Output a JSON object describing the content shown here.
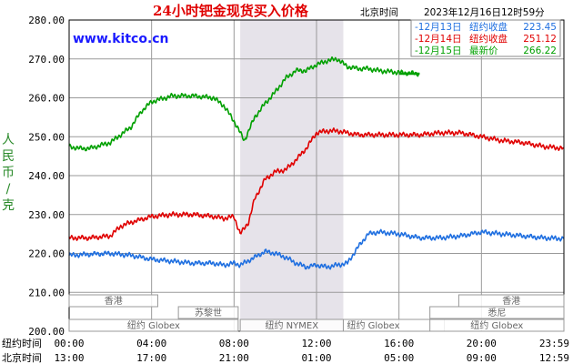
{
  "header": {
    "title": "24小时钯金现货买入价格",
    "timezone": "北京时间",
    "timestamp": "2023年12月16日12时59分",
    "brand": "www.kitco.cn"
  },
  "colors": {
    "bg": "#ffffff",
    "plot_border": "#000000",
    "grid": "#9a9a9a",
    "shade": "#e6e3ea",
    "series_dec13": "#1f6fe0",
    "series_dec14": "#e00000",
    "series_dec15": "#00a000",
    "title": "#e00000",
    "brand": "#1a1aff",
    "ylabel": "#2a8a2a"
  },
  "row_labels": {
    "ny": "纽约时间",
    "bj": "北京时间"
  },
  "markets": [
    {
      "name": "香港"
    },
    {
      "name": "苏黎世"
    },
    {
      "name": "纽约 Globex"
    },
    {
      "name": "纽约 NYMEX"
    },
    {
      "name": "纽约 Globex"
    },
    {
      "name": "香港"
    },
    {
      "name": "悉尼"
    },
    {
      "name": "纽约 Globex"
    }
  ],
  "chart_data": {
    "type": "line",
    "title": "24小时钯金现货买入价格",
    "ylabel": "人民币/克",
    "ylim": [
      200,
      280
    ],
    "yticks": [
      "280.00",
      "270.00",
      "260.00",
      "250.00",
      "240.00",
      "230.00",
      "220.00",
      "210.00",
      "200.00"
    ],
    "x_hours": [
      0,
      4,
      8,
      12,
      16,
      20,
      24
    ],
    "xticks_ny": [
      "00:00",
      "04:00",
      "08:00",
      "12:00",
      "16:00",
      "20:00",
      "23:59"
    ],
    "xticks_bj": [
      "13:00",
      "17:00",
      "21:00",
      "01:00",
      "05:00",
      "09:00",
      "12:59"
    ],
    "shaded_hours": [
      8.3,
      13.3
    ],
    "legend_placement": "top-right",
    "legend": [
      {
        "label": "12月13日",
        "kind": "纽约收盘",
        "value": "223.45",
        "color": "#1f6fe0"
      },
      {
        "label": "12月14日",
        "kind": "纽约收盘",
        "value": "251.12",
        "color": "#e00000"
      },
      {
        "label": "12月15日",
        "kind": "最新价",
        "value": "266.22",
        "color": "#00a000"
      }
    ],
    "series": [
      {
        "name": "12月13日",
        "color": "#1f6fe0",
        "x": [
          0,
          1,
          2,
          3,
          4,
          5,
          6,
          7,
          7.5,
          8,
          8.3,
          9,
          9.5,
          10,
          10.5,
          11,
          11.5,
          12,
          12.5,
          13,
          13.5,
          14,
          14.5,
          15,
          16,
          17,
          18,
          19,
          20,
          21,
          22,
          23,
          24
        ],
        "y": [
          219.5,
          219.8,
          220,
          219.5,
          218.5,
          218,
          217.5,
          217.5,
          217,
          217.5,
          217,
          219,
          220.5,
          220,
          219,
          217.5,
          216.5,
          217,
          216.5,
          217,
          217.5,
          221.5,
          225,
          225.5,
          225,
          224,
          224,
          224.5,
          225.5,
          225,
          224.5,
          224,
          223.8
        ]
      },
      {
        "name": "12月14日",
        "color": "#e00000",
        "x": [
          0,
          1,
          2,
          2.5,
          3,
          4,
          5,
          6,
          7,
          7.5,
          8,
          8.3,
          8.7,
          9,
          9.5,
          10,
          10.5,
          11,
          11.5,
          12,
          12.5,
          13,
          14,
          15,
          16,
          17,
          18,
          19,
          20,
          21,
          22,
          23,
          24
        ],
        "y": [
          224,
          224,
          224.5,
          227,
          228,
          229.5,
          230,
          230,
          229.5,
          229,
          229.5,
          225,
          228,
          234,
          239,
          241,
          241.5,
          244,
          247,
          251,
          251.5,
          251.5,
          250.5,
          250.5,
          250.5,
          250.5,
          251,
          251,
          250,
          249,
          248.5,
          247.5,
          247
        ]
      },
      {
        "name": "12月15日",
        "color": "#00a000",
        "x": [
          0,
          0.5,
          1,
          2,
          3,
          3.5,
          4,
          5,
          6,
          7,
          7.5,
          8,
          8.5,
          9,
          9.5,
          10,
          10.5,
          11,
          11.5,
          12,
          12.5,
          13,
          13.5,
          14,
          14.5,
          15,
          16,
          17
        ],
        "y": [
          247.5,
          247,
          247,
          248.5,
          252.5,
          256.5,
          259,
          260.5,
          260.5,
          260,
          258,
          254,
          249,
          255,
          258.5,
          261.5,
          265,
          267,
          267,
          268.5,
          269.5,
          270,
          268,
          267.5,
          267.5,
          267,
          266.5,
          266.2
        ]
      }
    ]
  }
}
